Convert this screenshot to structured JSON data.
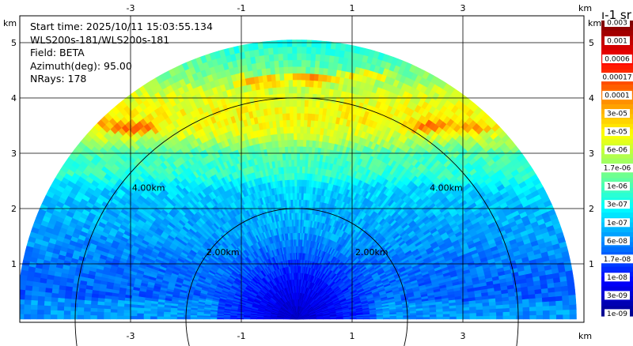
{
  "chart_data": {
    "type": "heatmap",
    "projection": "RHI range-height sector (0 to 180 deg elevation)",
    "info_lines": [
      "Start time: 2025/10/11 15:03:55.134",
      "WLS200s-181/WLS200s-181",
      "Field: BETA",
      "Azimuth(deg): 95.00",
      "NRays: 178"
    ],
    "x_unit": "km",
    "y_unit": "km",
    "x_ticks": [
      -3,
      -1,
      1,
      3
    ],
    "y_ticks": [
      1,
      2,
      3,
      4,
      5
    ],
    "xlim": [
      -5.0,
      5.2
    ],
    "ylim": [
      0,
      5.5
    ],
    "grid": true,
    "max_range_km": 5.05,
    "range_rings": [
      {
        "radius_km": 2,
        "label": "2.00km"
      },
      {
        "radius_km": 4,
        "label": "4.00km"
      }
    ],
    "layers": [
      {
        "height_km": 0.5,
        "level": 0.22
      },
      {
        "height_km": 1.0,
        "level": 0.24
      },
      {
        "height_km": 1.5,
        "level": 0.28
      },
      {
        "height_km": 2.0,
        "level": 0.31
      },
      {
        "height_km": 2.4,
        "level": 0.34
      },
      {
        "height_km": 2.6,
        "level": 0.42
      },
      {
        "height_km": 3.0,
        "level": 0.45
      },
      {
        "height_km": 3.3,
        "level": 0.58
      },
      {
        "height_km": 3.6,
        "level": 0.63
      },
      {
        "height_km": 3.9,
        "level": 0.61
      },
      {
        "height_km": 4.2,
        "level": 0.56
      },
      {
        "height_km": 4.5,
        "level": 0.48
      },
      {
        "height_km": 5.0,
        "level": 0.4
      }
    ],
    "hot_spots": [
      {
        "x_km": -3.0,
        "y_km": 3.47,
        "level": 0.82
      },
      {
        "x_km": -3.7,
        "y_km": 3.6,
        "level": 0.8
      },
      {
        "x_km": 2.4,
        "y_km": 3.5,
        "level": 0.8
      },
      {
        "x_km": 3.1,
        "y_km": 3.47,
        "level": 0.78
      },
      {
        "x_km": 0.3,
        "y_km": 4.35,
        "level": 0.76
      },
      {
        "x_km": -0.7,
        "y_km": 4.3,
        "level": 0.75
      },
      {
        "x_km": 1.2,
        "y_km": 4.4,
        "level": 0.7
      }
    ],
    "colorbar": {
      "unit_text": "ı-1 sr",
      "labels": [
        "0.003",
        "0.001",
        "0.0006",
        "0.00017",
        "0.0001",
        "3e-05",
        "1e-05",
        "6e-06",
        "1.7e-06",
        "1e-06",
        "3e-07",
        "1e-07",
        "6e-08",
        "1.7e-08",
        "1e-08",
        "3e-09",
        "1e-09"
      ]
    },
    "colors": {
      "axis": "#000000",
      "grid": "#000000",
      "background": "#ffffff"
    }
  }
}
